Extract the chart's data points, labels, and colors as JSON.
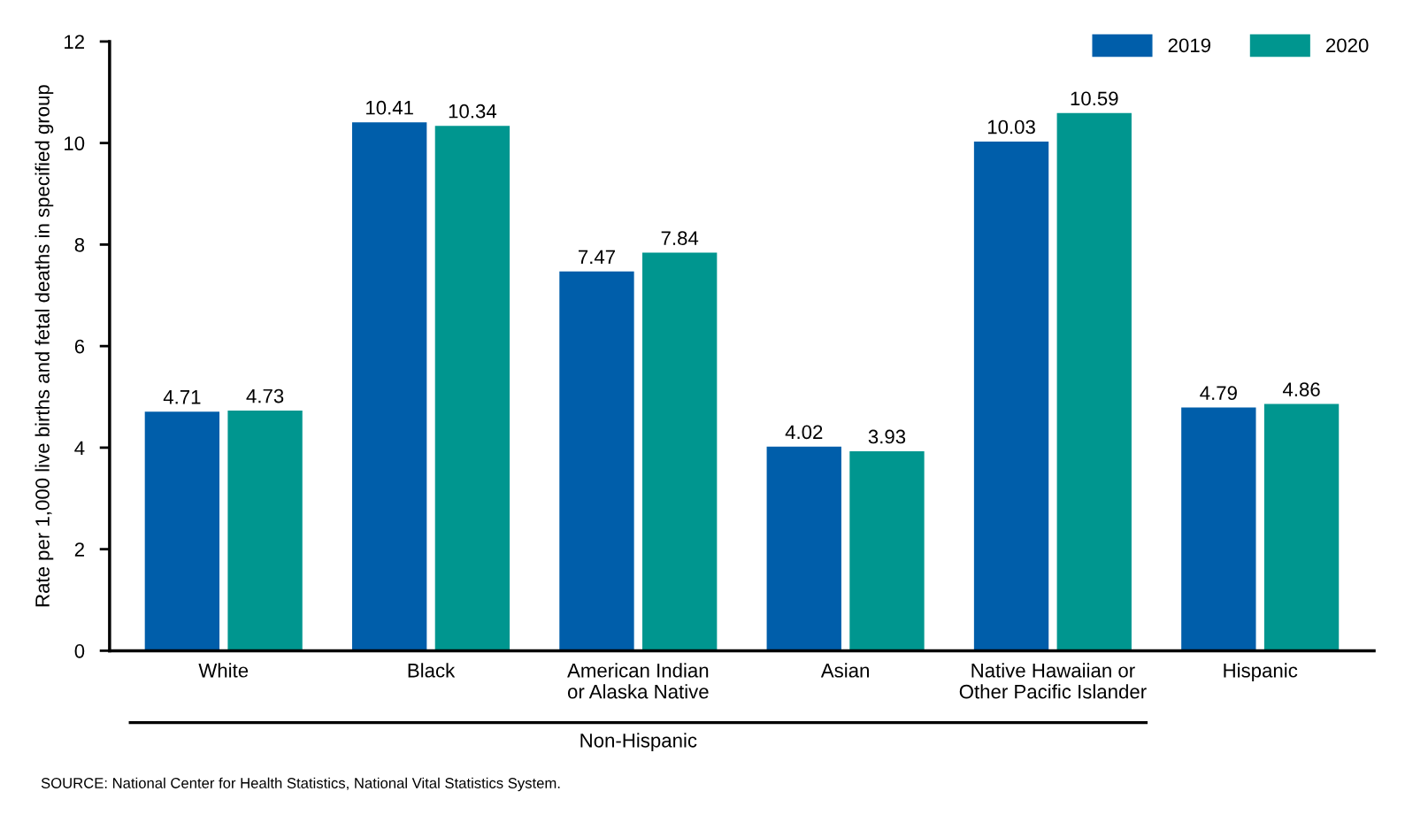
{
  "chart_data": {
    "type": "bar",
    "ylabel": "Rate per 1,000 live births and fetal deaths in specified group",
    "categories": [
      "White",
      "Black",
      "American Indian\nor Alaska Native",
      "Asian",
      "Native Hawaiian or\nOther Pacific Islander",
      "Hispanic"
    ],
    "series": [
      {
        "name": "2019",
        "color": "#005eaa",
        "values": [
          4.71,
          10.41,
          7.47,
          4.02,
          10.03,
          4.79
        ]
      },
      {
        "name": "2020",
        "color": "#00968f",
        "values": [
          4.73,
          10.34,
          7.84,
          3.93,
          10.59,
          4.86
        ]
      }
    ],
    "ylim": [
      0,
      12
    ],
    "yticks": [
      0,
      2,
      4,
      6,
      8,
      10,
      12
    ],
    "data_labels": true,
    "grid": false,
    "legend": "top right",
    "annotations": [
      "Non-Hispanic",
      "SOURCE: National Center for Health Statistics, National Vital Statistics System."
    ]
  }
}
